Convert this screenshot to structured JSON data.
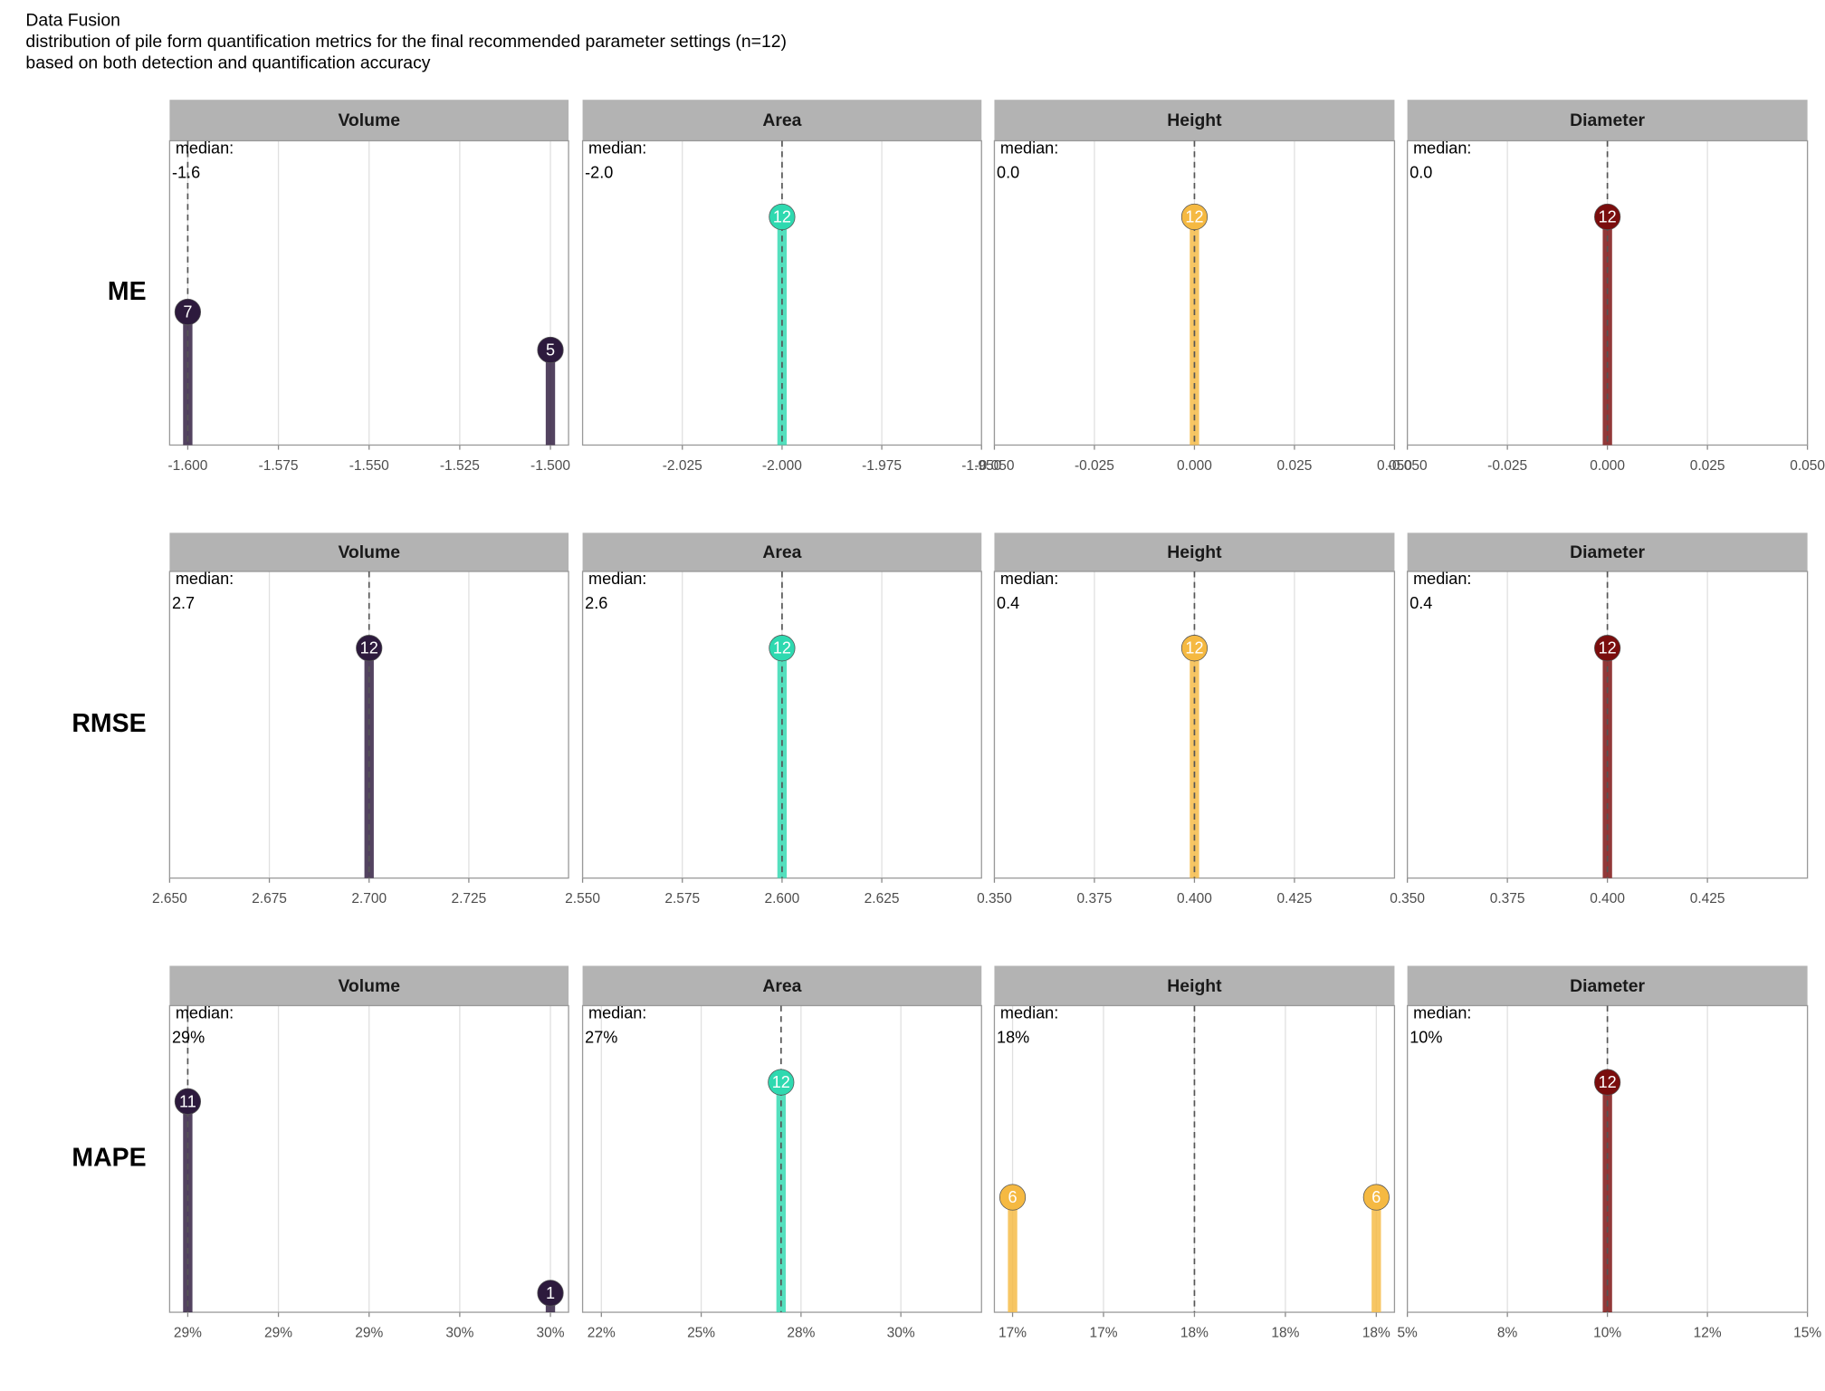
{
  "title": [
    "Data Fusion",
    "distribution of pile form quantification metrics for the final recommended parameter settings (n=12)",
    "based on both detection and quantification accuracy"
  ],
  "row_labels": [
    "ME",
    "RMSE",
    "MAPE"
  ],
  "chart_data": [
    {
      "type": "lollipop",
      "facet": "Volume",
      "median_text": "median:",
      "median_label": "-1.6",
      "median": -1.6,
      "x": [
        -1.6,
        -1.5
      ],
      "values": [
        7,
        5
      ],
      "color": "#2d1a3d",
      "xlim": [
        -1.605,
        -1.495
      ],
      "ylim": [
        0,
        16
      ],
      "xticks": [
        {
          "value": -1.6,
          "label": "-1.600"
        },
        {
          "value": -1.575,
          "label": "-1.575"
        },
        {
          "value": -1.55,
          "label": "-1.550"
        },
        {
          "value": -1.525,
          "label": "-1.525"
        },
        {
          "value": -1.5,
          "label": "-1.500"
        }
      ]
    },
    {
      "type": "lollipop",
      "facet": "Area",
      "median_text": "median:",
      "median_label": "-2.0",
      "median": -2.0,
      "x": [
        -2.0
      ],
      "values": [
        12
      ],
      "color": "#2ed9b0",
      "xlim": [
        -2.05,
        -1.95
      ],
      "ylim": [
        0,
        16
      ],
      "xticks": [
        {
          "value": -2.025,
          "label": "-2.025"
        },
        {
          "value": -2.0,
          "label": "-2.000"
        },
        {
          "value": -1.975,
          "label": "-1.975"
        },
        {
          "value": -1.95,
          "label": "-1.950"
        }
      ]
    },
    {
      "type": "lollipop",
      "facet": "Height",
      "median_text": "median:",
      "median_label": "0.0",
      "median": 0,
      "x": [
        0
      ],
      "values": [
        12
      ],
      "color": "#f5b942",
      "xlim": [
        -0.05,
        0.05
      ],
      "ylim": [
        0,
        16
      ],
      "xticks": [
        {
          "value": -0.05,
          "label": "-0.050"
        },
        {
          "value": -0.025,
          "label": "-0.025"
        },
        {
          "value": 0,
          "label": "0.000"
        },
        {
          "value": 0.025,
          "label": "0.025"
        },
        {
          "value": 0.05,
          "label": "0.050"
        }
      ]
    },
    {
      "type": "lollipop",
      "facet": "Diameter",
      "median_text": "median:",
      "median_label": "0.0",
      "median": 0,
      "x": [
        0
      ],
      "values": [
        12
      ],
      "color": "#7a0d0d",
      "xlim": [
        -0.05,
        0.05
      ],
      "ylim": [
        0,
        16
      ],
      "xticks": [
        {
          "value": -0.05,
          "label": "-0.050"
        },
        {
          "value": -0.025,
          "label": "-0.025"
        },
        {
          "value": 0,
          "label": "0.000"
        },
        {
          "value": 0.025,
          "label": "0.025"
        },
        {
          "value": 0.05,
          "label": "0.050"
        }
      ]
    },
    {
      "type": "lollipop",
      "facet": "Volume",
      "median_text": "median:",
      "median_label": "2.7",
      "median": 2.7,
      "x": [
        2.7
      ],
      "values": [
        12
      ],
      "color": "#2d1a3d",
      "xlim": [
        2.65,
        2.75
      ],
      "ylim": [
        0,
        16
      ],
      "xticks": [
        {
          "value": 2.65,
          "label": "2.650"
        },
        {
          "value": 2.675,
          "label": "2.675"
        },
        {
          "value": 2.7,
          "label": "2.700"
        },
        {
          "value": 2.725,
          "label": "2.725"
        }
      ]
    },
    {
      "type": "lollipop",
      "facet": "Area",
      "median_text": "median:",
      "median_label": "2.6",
      "median": 2.6,
      "x": [
        2.6
      ],
      "values": [
        12
      ],
      "color": "#2ed9b0",
      "xlim": [
        2.55,
        2.65
      ],
      "ylim": [
        0,
        16
      ],
      "xticks": [
        {
          "value": 2.55,
          "label": "2.550"
        },
        {
          "value": 2.575,
          "label": "2.575"
        },
        {
          "value": 2.6,
          "label": "2.600"
        },
        {
          "value": 2.625,
          "label": "2.625"
        }
      ]
    },
    {
      "type": "lollipop",
      "facet": "Height",
      "median_text": "median:",
      "median_label": "0.4",
      "median": 0.4,
      "x": [
        0.4
      ],
      "values": [
        12
      ],
      "color": "#f5b942",
      "xlim": [
        0.35,
        0.45
      ],
      "ylim": [
        0,
        16
      ],
      "xticks": [
        {
          "value": 0.35,
          "label": "0.350"
        },
        {
          "value": 0.375,
          "label": "0.375"
        },
        {
          "value": 0.4,
          "label": "0.400"
        },
        {
          "value": 0.425,
          "label": "0.425"
        }
      ]
    },
    {
      "type": "lollipop",
      "facet": "Diameter",
      "median_text": "median:",
      "median_label": "0.4",
      "median": 0.4,
      "x": [
        0.4
      ],
      "values": [
        12
      ],
      "color": "#7a0d0d",
      "xlim": [
        0.35,
        0.45
      ],
      "ylim": [
        0,
        16
      ],
      "xticks": [
        {
          "value": 0.35,
          "label": "0.350"
        },
        {
          "value": 0.375,
          "label": "0.375"
        },
        {
          "value": 0.4,
          "label": "0.400"
        },
        {
          "value": 0.425,
          "label": "0.425"
        }
      ]
    },
    {
      "type": "lollipop",
      "facet": "Volume",
      "median_text": "median:",
      "median_label": "29%",
      "median": 29.0,
      "x": [
        29.0,
        29.8
      ],
      "values": [
        11,
        1
      ],
      "color": "#2d1a3d",
      "xlim": [
        28.96,
        29.84
      ],
      "ylim": [
        0,
        16
      ],
      "xticks": [
        {
          "value": 29.0,
          "label": "29%"
        },
        {
          "value": 29.2,
          "label": "29%"
        },
        {
          "value": 29.4,
          "label": "29%"
        },
        {
          "value": 29.6,
          "label": "30%"
        },
        {
          "value": 29.8,
          "label": "30%"
        }
      ]
    },
    {
      "type": "lollipop",
      "facet": "Area",
      "median_text": "median:",
      "median_label": "27%",
      "median": 27.0,
      "x": [
        27.0
      ],
      "values": [
        12
      ],
      "color": "#2ed9b0",
      "xlim": [
        22.03,
        32.02
      ],
      "ylim": [
        0,
        16
      ],
      "xticks": [
        {
          "value": 22.5,
          "label": "22%"
        },
        {
          "value": 25,
          "label": "25%"
        },
        {
          "value": 27.5,
          "label": "28%"
        },
        {
          "value": 30,
          "label": "30%"
        }
      ]
    },
    {
      "type": "lollipop",
      "facet": "Height",
      "median_text": "median:",
      "median_label": "18%",
      "median": 17.5,
      "x": [
        17.0,
        18.0
      ],
      "values": [
        6,
        6
      ],
      "color": "#f5b942",
      "xlim": [
        16.95,
        18.05
      ],
      "ylim": [
        0,
        16
      ],
      "xticks": [
        {
          "value": 17.0,
          "label": "17%"
        },
        {
          "value": 17.25,
          "label": "17%"
        },
        {
          "value": 17.5,
          "label": "18%"
        },
        {
          "value": 17.75,
          "label": "18%"
        },
        {
          "value": 18.0,
          "label": "18%"
        }
      ]
    },
    {
      "type": "lollipop",
      "facet": "Diameter",
      "median_text": "median:",
      "median_label": "10%",
      "median": 10,
      "x": [
        10
      ],
      "values": [
        12
      ],
      "color": "#7a0d0d",
      "xlim": [
        5,
        15
      ],
      "ylim": [
        0,
        16
      ],
      "xticks": [
        {
          "value": 5,
          "label": "5%"
        },
        {
          "value": 7.5,
          "label": "8%"
        },
        {
          "value": 10,
          "label": "10%"
        },
        {
          "value": 12.5,
          "label": "12%"
        },
        {
          "value": 15,
          "label": "15%"
        }
      ]
    }
  ]
}
